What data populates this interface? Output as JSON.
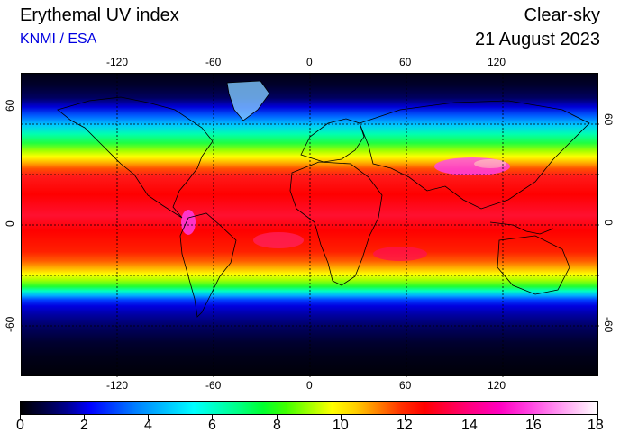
{
  "header": {
    "title": "Erythemal UV index",
    "subtitle": "KNMI / ESA",
    "mode": "Clear-sky",
    "date": "21 August 2023"
  },
  "map": {
    "lon_labels": [
      "-120",
      "-60",
      "0",
      "60",
      "120"
    ],
    "lat_labels": [
      "60",
      "0",
      "-60"
    ]
  },
  "colorbar": {
    "labels": [
      "0",
      "2",
      "4",
      "6",
      "8",
      "10",
      "12",
      "14",
      "16",
      "18"
    ]
  }
}
